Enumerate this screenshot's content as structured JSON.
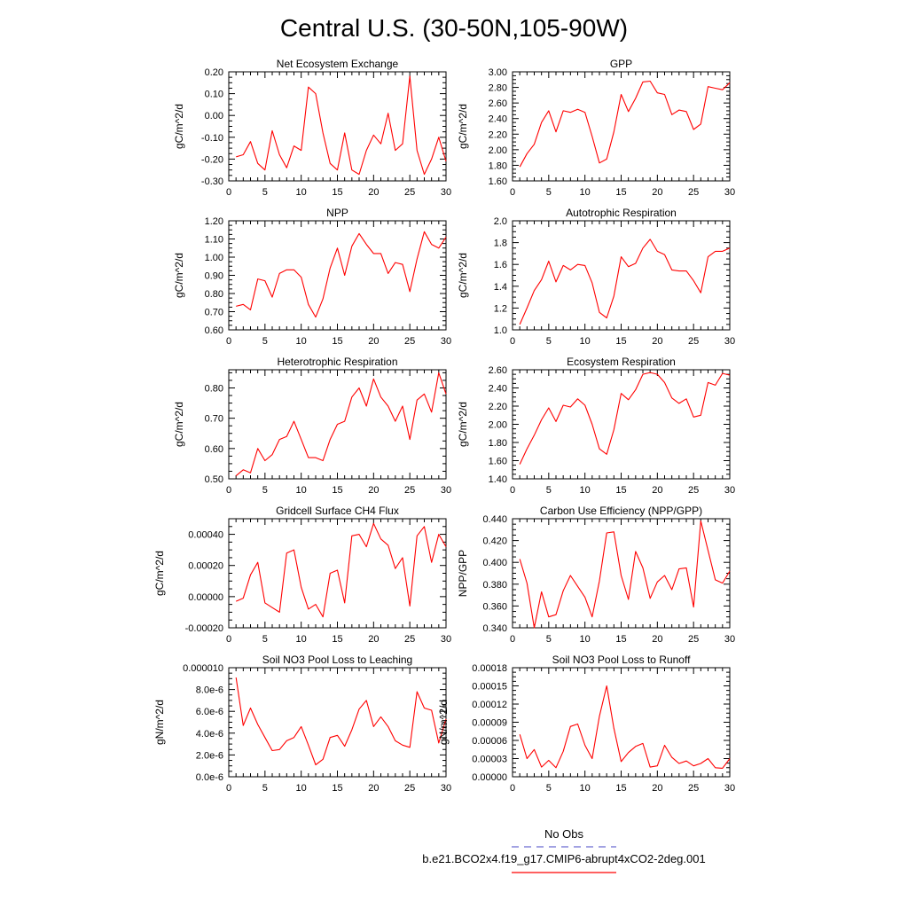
{
  "figure": {
    "title": "Central U.S. (30-50N,105-90W)",
    "line_color": "#ff0000",
    "obs_line_color": "#6a6ad0",
    "legend": {
      "obs_label": "No Obs",
      "case_label": "b.e21.BCO2x4.f19_g17.CMIP6-abrupt4xCO2-2deg.001"
    }
  },
  "chart_data": [
    {
      "type": "line",
      "title": "Net Ecosystem Exchange",
      "ylabel": "gC/m^2/d",
      "xlim": [
        0,
        30
      ],
      "ylim": [
        -0.3,
        0.2
      ],
      "xticks": [
        0,
        5,
        10,
        15,
        20,
        25,
        30
      ],
      "yticks": [
        -0.3,
        -0.2,
        -0.1,
        0.0,
        0.1,
        0.2
      ],
      "ytick_labels": [
        "-0.30",
        "-0.20",
        "-0.10",
        "0.00",
        "0.10",
        "0.20"
      ],
      "x": [
        1,
        2,
        3,
        4,
        5,
        6,
        7,
        8,
        9,
        10,
        11,
        12,
        13,
        14,
        15,
        16,
        17,
        18,
        19,
        20,
        21,
        22,
        23,
        24,
        25,
        26,
        27,
        28,
        29,
        30
      ],
      "y": [
        -0.19,
        -0.18,
        -0.12,
        -0.22,
        -0.25,
        -0.07,
        -0.18,
        -0.24,
        -0.14,
        -0.16,
        0.13,
        0.1,
        -0.08,
        -0.22,
        -0.25,
        -0.08,
        -0.25,
        -0.27,
        -0.16,
        -0.09,
        -0.13,
        0.01,
        -0.16,
        -0.13,
        0.18,
        -0.16,
        -0.27,
        -0.2,
        -0.1,
        -0.21
      ]
    },
    {
      "type": "line",
      "title": "GPP",
      "ylabel": "gC/m^2/d",
      "xlim": [
        0,
        30
      ],
      "ylim": [
        1.6,
        3.0
      ],
      "xticks": [
        0,
        5,
        10,
        15,
        20,
        25,
        30
      ],
      "yticks": [
        1.6,
        1.8,
        2.0,
        2.2,
        2.4,
        2.6,
        2.8,
        3.0
      ],
      "ytick_labels": [
        "1.60",
        "1.80",
        "2.00",
        "2.20",
        "2.40",
        "2.60",
        "2.80",
        "3.00"
      ],
      "x": [
        1,
        2,
        3,
        4,
        5,
        6,
        7,
        8,
        9,
        10,
        11,
        12,
        13,
        14,
        15,
        16,
        17,
        18,
        19,
        20,
        21,
        22,
        23,
        24,
        25,
        26,
        27,
        28,
        29,
        30
      ],
      "y": [
        1.78,
        1.95,
        2.07,
        2.35,
        2.5,
        2.23,
        2.5,
        2.48,
        2.52,
        2.48,
        2.17,
        1.83,
        1.88,
        2.23,
        2.71,
        2.49,
        2.66,
        2.87,
        2.88,
        2.73,
        2.71,
        2.45,
        2.51,
        2.49,
        2.26,
        2.33,
        2.81,
        2.79,
        2.77,
        2.86
      ]
    },
    {
      "type": "line",
      "title": "NPP",
      "ylabel": "gC/m^2/d",
      "xlim": [
        0,
        30
      ],
      "ylim": [
        0.6,
        1.2
      ],
      "xticks": [
        0,
        5,
        10,
        15,
        20,
        25,
        30
      ],
      "yticks": [
        0.6,
        0.7,
        0.8,
        0.9,
        1.0,
        1.1,
        1.2
      ],
      "ytick_labels": [
        "0.60",
        "0.70",
        "0.80",
        "0.90",
        "1.00",
        "1.10",
        "1.20"
      ],
      "x": [
        1,
        2,
        3,
        4,
        5,
        6,
        7,
        8,
        9,
        10,
        11,
        12,
        13,
        14,
        15,
        16,
        17,
        18,
        19,
        20,
        21,
        22,
        23,
        24,
        25,
        26,
        27,
        28,
        29,
        30
      ],
      "y": [
        0.73,
        0.74,
        0.71,
        0.88,
        0.87,
        0.78,
        0.91,
        0.93,
        0.93,
        0.89,
        0.74,
        0.67,
        0.77,
        0.94,
        1.05,
        0.9,
        1.06,
        1.13,
        1.07,
        1.02,
        1.02,
        0.91,
        0.97,
        0.96,
        0.81,
        0.99,
        1.14,
        1.07,
        1.05,
        1.11
      ]
    },
    {
      "type": "line",
      "title": "Autotrophic Respiration",
      "ylabel": "gC/m^2/d",
      "xlim": [
        0,
        30
      ],
      "ylim": [
        1.0,
        2.0
      ],
      "xticks": [
        0,
        5,
        10,
        15,
        20,
        25,
        30
      ],
      "yticks": [
        1.0,
        1.2,
        1.4,
        1.6,
        1.8,
        2.0
      ],
      "ytick_labels": [
        "1.0",
        "1.2",
        "1.4",
        "1.6",
        "1.8",
        "2.0"
      ],
      "x": [
        1,
        2,
        3,
        4,
        5,
        6,
        7,
        8,
        9,
        10,
        11,
        12,
        13,
        14,
        15,
        16,
        17,
        18,
        19,
        20,
        21,
        22,
        23,
        24,
        25,
        26,
        27,
        28,
        29,
        30
      ],
      "y": [
        1.05,
        1.2,
        1.36,
        1.46,
        1.63,
        1.44,
        1.59,
        1.55,
        1.6,
        1.59,
        1.43,
        1.16,
        1.11,
        1.31,
        1.67,
        1.58,
        1.61,
        1.75,
        1.83,
        1.72,
        1.69,
        1.55,
        1.54,
        1.54,
        1.45,
        1.34,
        1.67,
        1.72,
        1.72,
        1.75
      ]
    },
    {
      "type": "line",
      "title": "Heterotrophic Respiration",
      "ylabel": "gC/m^2/d",
      "xlim": [
        0,
        30
      ],
      "ylim": [
        0.5,
        0.86
      ],
      "xticks": [
        0,
        5,
        10,
        15,
        20,
        25,
        30
      ],
      "yticks": [
        0.5,
        0.6,
        0.7,
        0.8
      ],
      "ytick_labels": [
        "0.50",
        "0.60",
        "0.70",
        "0.80"
      ],
      "x": [
        1,
        2,
        3,
        4,
        5,
        6,
        7,
        8,
        9,
        10,
        11,
        12,
        13,
        14,
        15,
        16,
        17,
        18,
        19,
        20,
        21,
        22,
        23,
        24,
        25,
        26,
        27,
        28,
        29,
        30
      ],
      "y": [
        0.51,
        0.53,
        0.52,
        0.6,
        0.56,
        0.58,
        0.63,
        0.64,
        0.69,
        0.63,
        0.57,
        0.57,
        0.56,
        0.63,
        0.68,
        0.69,
        0.77,
        0.8,
        0.74,
        0.83,
        0.77,
        0.74,
        0.69,
        0.74,
        0.63,
        0.76,
        0.78,
        0.72,
        0.85,
        0.78
      ]
    },
    {
      "type": "line",
      "title": "Ecosystem Respiration",
      "ylabel": "gC/m^2/d",
      "xlim": [
        0,
        30
      ],
      "ylim": [
        1.4,
        2.6
      ],
      "xticks": [
        0,
        5,
        10,
        15,
        20,
        25,
        30
      ],
      "yticks": [
        1.4,
        1.6,
        1.8,
        2.0,
        2.2,
        2.4,
        2.6
      ],
      "ytick_labels": [
        "1.40",
        "1.60",
        "1.80",
        "2.00",
        "2.20",
        "2.40",
        "2.60"
      ],
      "x": [
        1,
        2,
        3,
        4,
        5,
        6,
        7,
        8,
        9,
        10,
        11,
        12,
        13,
        14,
        15,
        16,
        17,
        18,
        19,
        20,
        21,
        22,
        23,
        24,
        25,
        26,
        27,
        28,
        29,
        30
      ],
      "y": [
        1.56,
        1.73,
        1.88,
        2.05,
        2.18,
        2.03,
        2.21,
        2.19,
        2.28,
        2.21,
        2.0,
        1.73,
        1.67,
        1.94,
        2.34,
        2.27,
        2.38,
        2.55,
        2.57,
        2.55,
        2.46,
        2.29,
        2.23,
        2.28,
        2.08,
        2.1,
        2.46,
        2.43,
        2.56,
        2.54
      ]
    },
    {
      "type": "line",
      "title": "Gridcell Surface CH4 Flux",
      "ylabel": "gC/m^2/d",
      "xlim": [
        0,
        30
      ],
      "ylim": [
        -0.0002,
        0.0005
      ],
      "xticks": [
        0,
        5,
        10,
        15,
        20,
        25,
        30
      ],
      "yticks": [
        -0.0002,
        0.0,
        0.0002,
        0.0004
      ],
      "ytick_labels": [
        "-0.00020",
        "0.00000",
        "0.00020",
        "0.00040"
      ],
      "x": [
        1,
        2,
        3,
        4,
        5,
        6,
        7,
        8,
        9,
        10,
        11,
        12,
        13,
        14,
        15,
        16,
        17,
        18,
        19,
        20,
        21,
        22,
        23,
        24,
        25,
        26,
        27,
        28,
        29,
        30
      ],
      "y": [
        -3e-05,
        -1e-05,
        0.00014,
        0.00022,
        -4e-05,
        -7e-05,
        -0.0001,
        0.00028,
        0.0003,
        6e-05,
        -8e-05,
        -5e-05,
        -0.00013,
        0.00015,
        0.00017,
        -4e-05,
        0.00039,
        0.0004,
        0.00032,
        0.00047,
        0.00037,
        0.00033,
        0.00018,
        0.00025,
        -6e-05,
        0.00039,
        0.00045,
        0.00022,
        0.0004,
        0.00032
      ]
    },
    {
      "type": "line",
      "title": "Carbon Use Efficiency (NPP/GPP)",
      "ylabel": "NPP/GPP",
      "xlim": [
        0,
        30
      ],
      "ylim": [
        0.34,
        0.44
      ],
      "xticks": [
        0,
        5,
        10,
        15,
        20,
        25,
        30
      ],
      "yticks": [
        0.34,
        0.36,
        0.38,
        0.4,
        0.42,
        0.44
      ],
      "ytick_labels": [
        "0.340",
        "0.360",
        "0.380",
        "0.400",
        "0.420",
        "0.440"
      ],
      "x": [
        1,
        2,
        3,
        4,
        5,
        6,
        7,
        8,
        9,
        10,
        11,
        12,
        13,
        14,
        15,
        16,
        17,
        18,
        19,
        20,
        21,
        22,
        23,
        24,
        25,
        26,
        27,
        28,
        29,
        30
      ],
      "y": [
        0.403,
        0.381,
        0.34,
        0.373,
        0.35,
        0.352,
        0.374,
        0.388,
        0.378,
        0.368,
        0.35,
        0.383,
        0.427,
        0.428,
        0.388,
        0.366,
        0.41,
        0.395,
        0.367,
        0.382,
        0.388,
        0.375,
        0.394,
        0.395,
        0.359,
        0.438,
        0.411,
        0.384,
        0.381,
        0.392
      ]
    },
    {
      "type": "line",
      "title": "Soil NO3 Pool Loss to Leaching",
      "ylabel": "gN/m^2/d",
      "xlim": [
        0,
        30
      ],
      "ylim": [
        0.0,
        1e-05
      ],
      "xticks": [
        0,
        5,
        10,
        15,
        20,
        25,
        30
      ],
      "yticks": [
        0.0,
        2e-06,
        4e-06,
        6e-06,
        8e-06,
        1e-05
      ],
      "ytick_labels": [
        "0.0e-6",
        "2.0e-6",
        "4.0e-6",
        "6.0e-6",
        "8.0e-6",
        "0.000010"
      ],
      "x": [
        1,
        2,
        3,
        4,
        5,
        6,
        7,
        8,
        9,
        10,
        11,
        12,
        13,
        14,
        15,
        16,
        17,
        18,
        19,
        20,
        21,
        22,
        23,
        24,
        25,
        26,
        27,
        28,
        29,
        30
      ],
      "y": [
        9.1e-06,
        4.7e-06,
        6.3e-06,
        4.8e-06,
        3.6e-06,
        2.4e-06,
        2.5e-06,
        3.3e-06,
        3.6e-06,
        4.6e-06,
        2.9e-06,
        1.1e-06,
        1.6e-06,
        3.6e-06,
        3.8e-06,
        2.8e-06,
        4.3e-06,
        6.2e-06,
        7e-06,
        4.6e-06,
        5.5e-06,
        4.6e-06,
        3.3e-06,
        2.9e-06,
        2.7e-06,
        7.8e-06,
        6.3e-06,
        6.1e-06,
        3.1e-06,
        5.3e-06
      ]
    },
    {
      "type": "line",
      "title": "Soil NO3 Pool Loss to Runoff",
      "ylabel": "gN/m^2/d",
      "xlim": [
        0,
        30
      ],
      "ylim": [
        0.0,
        0.00018
      ],
      "xticks": [
        0,
        5,
        10,
        15,
        20,
        25,
        30
      ],
      "yticks": [
        0.0,
        3e-05,
        6e-05,
        9e-05,
        0.00012,
        0.00015,
        0.00018
      ],
      "ytick_labels": [
        "0.00000",
        "0.00003",
        "0.00006",
        "0.00009",
        "0.00012",
        "0.00015",
        "0.00018"
      ],
      "x": [
        1,
        2,
        3,
        4,
        5,
        6,
        7,
        8,
        9,
        10,
        11,
        12,
        13,
        14,
        15,
        16,
        17,
        18,
        19,
        20,
        21,
        22,
        23,
        24,
        25,
        26,
        27,
        28,
        29,
        30
      ],
      "y": [
        7e-05,
        3e-05,
        4.5e-05,
        1.6e-05,
        2.7e-05,
        1.5e-05,
        4.2e-05,
        8.3e-05,
        8.7e-05,
        5.2e-05,
        3e-05,
        0.0001,
        0.00015,
        8e-05,
        2.5e-05,
        4e-05,
        5e-05,
        5.5e-05,
        1.6e-05,
        1.8e-05,
        5.2e-05,
        3.2e-05,
        2.2e-05,
        2.6e-05,
        1.8e-05,
        2.2e-05,
        3e-05,
        1.5e-05,
        1.4e-05,
        3e-05
      ]
    }
  ]
}
